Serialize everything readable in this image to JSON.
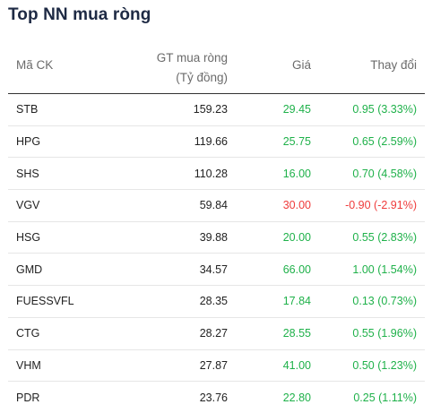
{
  "title": "Top NN mua ròng",
  "columns": {
    "code": "Mã CK",
    "gt_line1": "GT mua ròng",
    "gt_line2": "(Tỷ đồng)",
    "price": "Giá",
    "change": "Thay đổi"
  },
  "colors": {
    "up": "#1fb14a",
    "down": "#ef3b3b"
  },
  "rows": [
    {
      "code": "STB",
      "value": "159.23",
      "price": "29.45",
      "change": "0.95 (3.33%)",
      "dir": "up"
    },
    {
      "code": "HPG",
      "value": "119.66",
      "price": "25.75",
      "change": "0.65 (2.59%)",
      "dir": "up"
    },
    {
      "code": "SHS",
      "value": "110.28",
      "price": "16.00",
      "change": "0.70 (4.58%)",
      "dir": "up"
    },
    {
      "code": "VGV",
      "value": "59.84",
      "price": "30.00",
      "change": "-0.90 (-2.91%)",
      "dir": "down"
    },
    {
      "code": "HSG",
      "value": "39.88",
      "price": "20.00",
      "change": "0.55 (2.83%)",
      "dir": "up"
    },
    {
      "code": "GMD",
      "value": "34.57",
      "price": "66.00",
      "change": "1.00 (1.54%)",
      "dir": "up"
    },
    {
      "code": "FUESSVFL",
      "value": "28.35",
      "price": "17.84",
      "change": "0.13 (0.73%)",
      "dir": "up"
    },
    {
      "code": "CTG",
      "value": "28.27",
      "price": "28.55",
      "change": "0.55 (1.96%)",
      "dir": "up"
    },
    {
      "code": "VHM",
      "value": "27.87",
      "price": "41.00",
      "change": "0.50 (1.23%)",
      "dir": "up"
    },
    {
      "code": "PDR",
      "value": "23.76",
      "price": "22.80",
      "change": "0.25 (1.11%)",
      "dir": "up"
    }
  ]
}
